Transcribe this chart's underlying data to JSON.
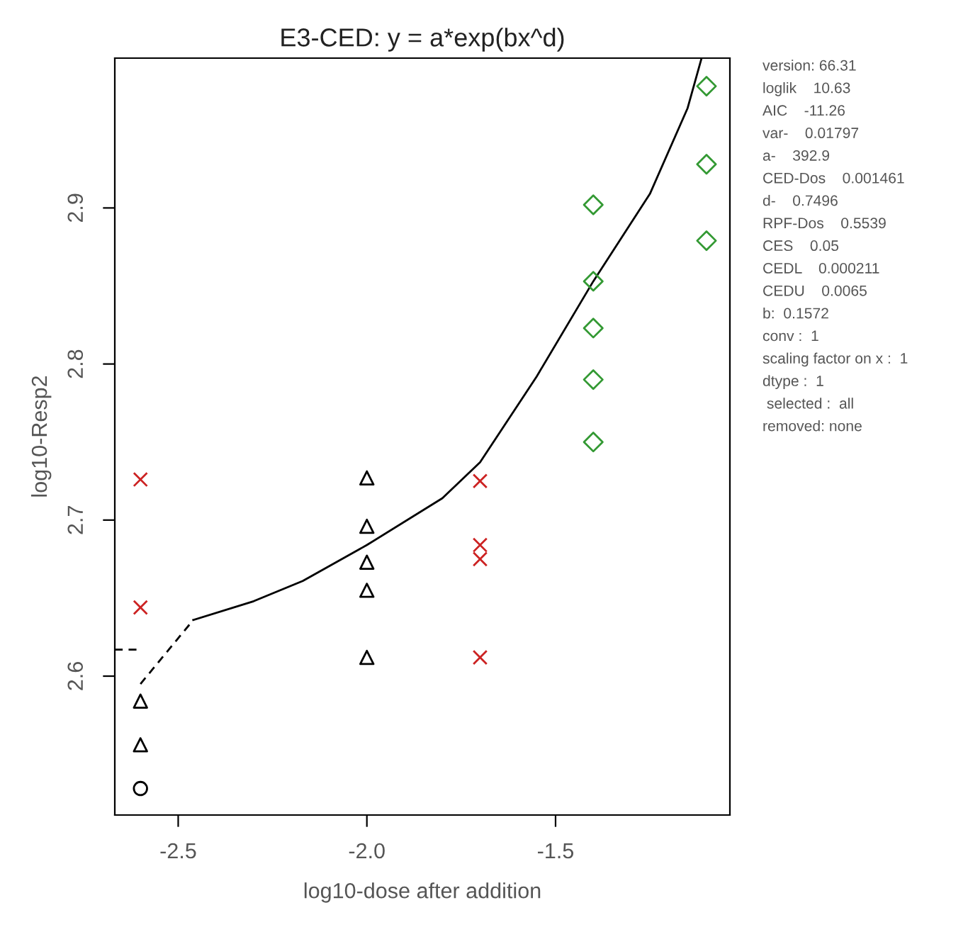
{
  "chart_data": {
    "type": "scatter",
    "title": "E3-CED: y = a*exp(bx^d)",
    "xlabel": "log10-dose after addition",
    "ylabel": "log10-Resp2",
    "xlim": [
      -2.668,
      -1.038
    ],
    "ylim": [
      2.511,
      2.996
    ],
    "xticks": [
      {
        "value": -2.5,
        "label": "-2.5"
      },
      {
        "value": -2.0,
        "label": "-2.0"
      },
      {
        "value": -1.5,
        "label": "-1.5"
      }
    ],
    "yticks": [
      2.6,
      2.7,
      2.8,
      2.9
    ],
    "grid": false,
    "legend": false,
    "series": [
      {
        "marker": "triangle",
        "color": "#000000",
        "x": [
          -2.6,
          -2.0,
          -2.0,
          -2.0,
          -2.0
        ],
        "values": [
          2.584,
          2.727,
          2.696,
          2.655,
          2.612
        ]
      },
      {
        "marker": "circle",
        "color": "#000000",
        "x": [
          -2.6
        ],
        "values": [
          2.528
        ]
      },
      {
        "marker": "triangle",
        "color": "#000000",
        "x": [
          -2.6,
          -2.0
        ],
        "values": [
          2.556,
          2.673
        ]
      },
      {
        "marker": "cross",
        "color": "#cc2222",
        "x": [
          -2.6,
          -1.7,
          -1.7,
          -1.7
        ],
        "values": [
          2.726,
          2.725,
          2.675,
          2.612
        ]
      },
      {
        "marker": "cross",
        "color": "#cc2222",
        "x": [
          -2.6,
          -1.7
        ],
        "values": [
          2.644,
          2.684
        ]
      },
      {
        "marker": "diamond",
        "color": "#339933",
        "x": [
          -1.4,
          -1.4,
          -1.4,
          -1.4,
          -1.1,
          -1.1
        ],
        "values": [
          2.902,
          2.853,
          2.79,
          2.75,
          2.978,
          2.879
        ]
      },
      {
        "marker": "diamond",
        "color": "#339933",
        "x": [
          -1.4,
          -1.1
        ],
        "values": [
          2.823,
          2.928
        ]
      },
      {
        "type": "line",
        "line_style": "dashed",
        "color": "#000000",
        "x": [
          -2.6,
          -2.46
        ],
        "values": [
          2.595,
          2.636
        ]
      },
      {
        "type": "line",
        "line_style": "solid",
        "color": "#000000",
        "x": [
          -2.46,
          -2.3,
          -2.17,
          -2.0,
          -1.8,
          -1.7,
          -1.55,
          -1.4,
          -1.25,
          -1.15,
          -1.113
        ],
        "values": [
          2.636,
          2.648,
          2.661,
          2.684,
          2.714,
          2.737,
          2.792,
          2.853,
          2.909,
          2.964,
          2.996
        ]
      },
      {
        "type": "line",
        "line_style": "dashed",
        "color": "#000000",
        "x": [
          -2.668,
          -2.6
        ],
        "values": [
          2.617,
          2.617
        ]
      }
    ],
    "annotations": [
      "version: 66.31",
      "loglik    10.63",
      "AIC    -11.26",
      "var-    0.01797",
      "a-    392.9",
      "CED-Dos    0.001461",
      "d-    0.7496",
      "RPF-Dos    0.5539",
      "CES    0.05",
      "CEDL    0.000211",
      "CEDU    0.0065",
      "b:  0.1572",
      "conv :  1",
      "scaling factor on x :  1",
      "dtype :  1",
      " selected :  all",
      "removed: none"
    ]
  }
}
